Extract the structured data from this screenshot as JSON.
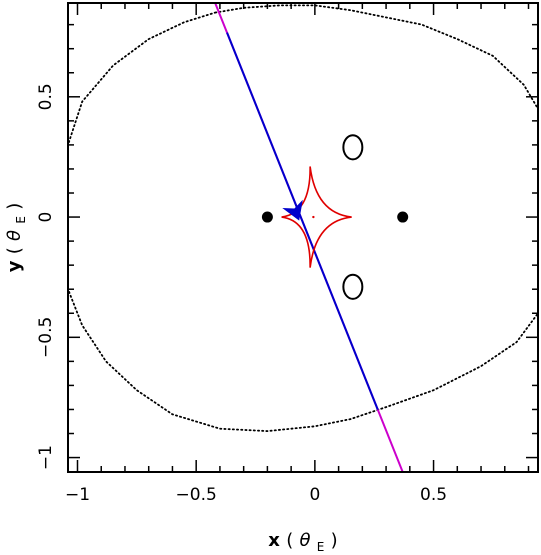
{
  "chart_data": {
    "type": "scatter",
    "title": "",
    "xlabel": "x",
    "xlabel_unit": "θ",
    "xlabel_unit_sub": "E",
    "ylabel": "y",
    "ylabel_unit": "θ",
    "ylabel_unit_sub": "E",
    "xlim": [
      -1.04,
      0.94
    ],
    "ylim": [
      -1.06,
      0.89
    ],
    "x_ticks": [
      -1,
      -0.5,
      0,
      0.5
    ],
    "y_ticks": [
      -1,
      -0.5,
      0,
      0.5
    ],
    "x_tick_labels": [
      "−1",
      "−0.5",
      "0",
      "0.5"
    ],
    "y_tick_labels": [
      "−1",
      "−0.5",
      "0",
      "0.5"
    ],
    "grid": false,
    "legend": "none",
    "lens_positions": {
      "x": [
        -0.2,
        0.37
      ],
      "y": [
        0,
        0
      ]
    },
    "critical_curve_loops": [
      {
        "cx": 0.16,
        "cy": 0.29,
        "rx": 0.04,
        "ry": 0.05
      },
      {
        "cx": 0.16,
        "cy": -0.29,
        "rx": 0.04,
        "ry": 0.05
      }
    ],
    "caustic": {
      "color": "#e00000",
      "cusps": {
        "x": [
          0.155,
          -0.02,
          -0.14,
          -0.02
        ],
        "y": [
          0,
          0.21,
          0,
          -0.21
        ]
      }
    },
    "source_trajectory": {
      "colors": [
        "#cc00cc",
        "#0000cc"
      ],
      "x": [
        -0.42,
        0.37
      ],
      "y": [
        0.89,
        -1.06
      ],
      "blue_range_x": [
        -0.37,
        0.265
      ]
    },
    "source_marker": {
      "color": "#0000cc",
      "x": -0.08,
      "y": 0.02
    },
    "outer_boundary": {
      "style": "dotted",
      "x": [
        -0.42,
        -0.3,
        -0.15,
        0,
        0.15,
        0.3,
        0.45,
        0.6,
        0.75,
        0.88,
        0.94,
        0.94,
        0.85,
        0.7,
        0.5,
        0.3,
        0.15,
        0,
        -0.2,
        -0.4,
        -0.6,
        -0.75,
        -0.88,
        -0.98,
        -1.04,
        -1.04,
        -0.98,
        -0.85,
        -0.7,
        -0.55,
        -0.42
      ],
      "y": [
        0.85,
        0.87,
        0.88,
        0.88,
        0.86,
        0.83,
        0.8,
        0.74,
        0.67,
        0.55,
        0.45,
        -0.4,
        -0.52,
        -0.62,
        -0.72,
        -0.79,
        -0.84,
        -0.87,
        -0.89,
        -0.88,
        -0.82,
        -0.72,
        -0.6,
        -0.45,
        -0.3,
        0.3,
        0.48,
        0.63,
        0.74,
        0.81,
        0.85
      ]
    }
  }
}
